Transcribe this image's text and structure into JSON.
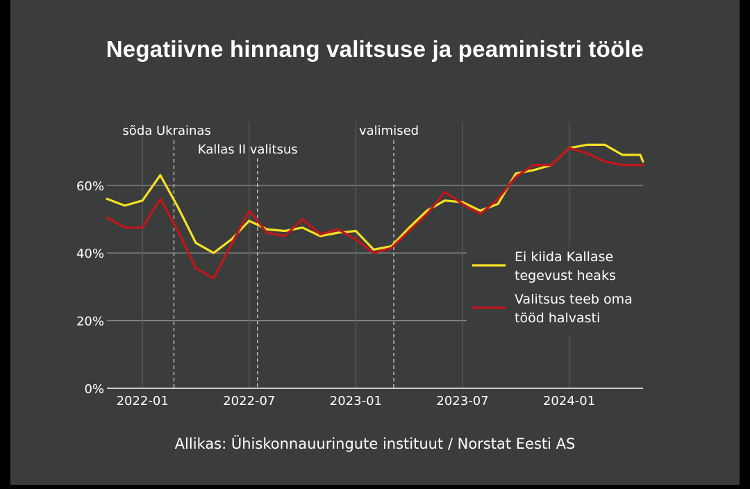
{
  "title": "Negatiivne hinnang valitsuse ja peaministri tööle",
  "source": "Allikas: Ühiskonnauuringute instituut / Norstat Eesti AS",
  "colors": {
    "background": "#3b3c3c",
    "grid": "#8a8b8b",
    "series_yellow": "#f5e123",
    "series_red": "#c3161b"
  },
  "chart_data": {
    "type": "line",
    "x_type": "date",
    "xlim": [
      "2021-11",
      "2024-05"
    ],
    "ylim": [
      0,
      70
    ],
    "y_ticks": [
      {
        "value": 0,
        "label": "0%"
      },
      {
        "value": 20,
        "label": "20%"
      },
      {
        "value": 40,
        "label": "40%"
      },
      {
        "value": 60,
        "label": "60%"
      }
    ],
    "x_ticks": [
      {
        "value": "2022-01",
        "label": "2022-01"
      },
      {
        "value": "2022-07",
        "label": "2022-07"
      },
      {
        "value": "2023-01",
        "label": "2023-01"
      },
      {
        "value": "2023-07",
        "label": "2023-07"
      },
      {
        "value": "2024-01",
        "label": "2024-01"
      }
    ],
    "grid": true,
    "legend_position": "right",
    "events": [
      {
        "x": "2022-02-24",
        "label": "sõda Ukrainas"
      },
      {
        "x": "2022-07-15",
        "label": "Kallas II valitsus"
      },
      {
        "x": "2023-03-05",
        "label": "valimised"
      }
    ],
    "series": [
      {
        "name": "Ei kiida Kallase tegevust heaks",
        "color": "#f5e123",
        "points": [
          [
            "2021-11",
            56
          ],
          [
            "2021-12",
            54
          ],
          [
            "2022-01",
            55.5
          ],
          [
            "2022-02",
            63
          ],
          [
            "2022-03",
            53.5
          ],
          [
            "2022-04",
            43
          ],
          [
            "2022-05",
            40
          ],
          [
            "2022-06",
            44
          ],
          [
            "2022-07",
            49.5
          ],
          [
            "2022-08",
            47
          ],
          [
            "2022-09",
            46.5
          ],
          [
            "2022-10",
            47.5
          ],
          [
            "2022-11",
            45
          ],
          [
            "2022-12",
            46
          ],
          [
            "2023-01",
            46.5
          ],
          [
            "2023-02",
            41
          ],
          [
            "2023-03",
            42
          ],
          [
            "2023-04",
            47.5
          ],
          [
            "2023-05",
            52.5
          ],
          [
            "2023-06",
            55.5
          ],
          [
            "2023-07",
            55
          ],
          [
            "2023-08",
            52.5
          ],
          [
            "2023-09",
            54.5
          ],
          [
            "2023-10",
            63.5
          ],
          [
            "2023-11",
            64.5
          ],
          [
            "2023-12",
            66
          ],
          [
            "2024-01",
            71
          ],
          [
            "2024-02",
            72
          ],
          [
            "2024-03",
            72
          ],
          [
            "2024-04",
            69
          ],
          [
            "2024-05",
            69
          ],
          [
            "2024-06",
            67
          ]
        ]
      },
      {
        "name": "Valitsus teeb oma tööd halvasti",
        "color": "#c3161b",
        "points": [
          [
            "2021-11",
            50.5
          ],
          [
            "2021-12",
            47.5
          ],
          [
            "2022-01",
            47.5
          ],
          [
            "2022-02",
            56
          ],
          [
            "2022-03",
            46.5
          ],
          [
            "2022-04",
            35.5
          ],
          [
            "2022-05",
            32.5
          ],
          [
            "2022-06",
            42.5
          ],
          [
            "2022-07",
            52.5
          ],
          [
            "2022-08",
            46
          ],
          [
            "2022-09",
            45
          ],
          [
            "2022-10",
            50
          ],
          [
            "2022-11",
            45.5
          ],
          [
            "2022-12",
            47
          ],
          [
            "2023-01",
            44
          ],
          [
            "2023-02",
            40
          ],
          [
            "2023-03",
            41.5
          ],
          [
            "2023-04",
            46.5
          ],
          [
            "2023-05",
            51.5
          ],
          [
            "2023-06",
            58
          ],
          [
            "2023-07",
            54.5
          ],
          [
            "2023-08",
            51.5
          ],
          [
            "2023-09",
            56
          ],
          [
            "2023-10",
            62.5
          ],
          [
            "2023-11",
            66
          ],
          [
            "2023-12",
            66
          ],
          [
            "2024-01",
            71
          ],
          [
            "2024-02",
            69.5
          ],
          [
            "2024-03",
            67
          ],
          [
            "2024-04",
            66
          ],
          [
            "2024-05",
            66
          ],
          [
            "2024-06",
            66
          ]
        ]
      }
    ],
    "legend": [
      {
        "lines": [
          "Ei kiida Kallase",
          "tegevust heaks"
        ],
        "color": "#f5e123"
      },
      {
        "lines": [
          "Valitsus teeb oma",
          "tööd halvasti"
        ],
        "color": "#c3161b"
      }
    ]
  }
}
